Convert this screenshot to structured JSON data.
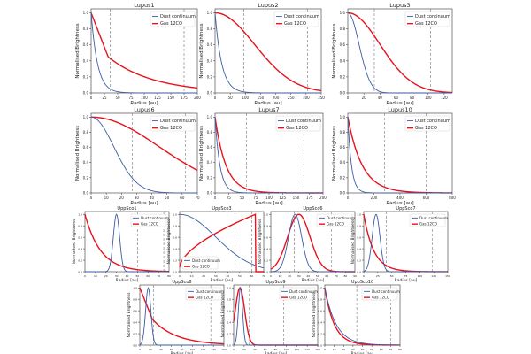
{
  "colors": {
    "dust": "#3b5ba5",
    "gas": "#e8121c",
    "axis": "#333333",
    "dashed": "#777777"
  },
  "common": {
    "xlabel": "Radius [au]",
    "ylabel": "Normalised Brightness",
    "legend": [
      "Dust continuum",
      "Gas 12CO"
    ]
  },
  "chart_data": [
    {
      "type": "line",
      "title": "Lupus1",
      "xlim": [
        0,
        200
      ],
      "xticks": [
        0,
        25,
        50,
        75,
        100,
        125,
        150,
        175,
        200
      ],
      "ylim": [
        0,
        1.05
      ],
      "yticks": [
        0,
        0.2,
        0.4,
        0.6,
        0.8,
        1.0
      ],
      "legend": "top-right",
      "vlines": [
        36,
        175
      ],
      "dust": {
        "shape": "decay",
        "scale": 12
      },
      "gas": {
        "shape": "kneeexp",
        "knee": 32,
        "scale": 85
      }
    },
    {
      "type": "line",
      "title": "Lupus2",
      "xlim": [
        0,
        350
      ],
      "xticks": [
        0,
        50,
        100,
        150,
        200,
        250,
        300,
        350
      ],
      "ylim": [
        0,
        1.05
      ],
      "yticks": [
        0,
        0.2,
        0.4,
        0.6,
        0.8,
        1.0
      ],
      "legend": "top-right",
      "vlines": [
        95,
        305
      ],
      "dust": {
        "shape": "decay",
        "scale": 22
      },
      "gas": {
        "shape": "gauss",
        "scale": 130
      }
    },
    {
      "type": "line",
      "title": "Lupus3",
      "xlim": [
        0,
        130
      ],
      "xticks": [
        0,
        20,
        40,
        60,
        80,
        100,
        120
      ],
      "ylim": [
        0,
        1.05
      ],
      "yticks": [
        0,
        0.2,
        0.4,
        0.6,
        0.8,
        1.0
      ],
      "legend": "top-right",
      "vlines": [
        33,
        103
      ],
      "dust": {
        "shape": "gauss",
        "scale": 14
      },
      "gas": {
        "shape": "gauss",
        "scale": 40
      }
    },
    {
      "type": "line",
      "title": "Lupus6",
      "xlim": [
        0,
        70
      ],
      "xticks": [
        0,
        10,
        20,
        30,
        40,
        50,
        60,
        70
      ],
      "ylim": [
        0,
        1.05
      ],
      "yticks": [
        0,
        0.2,
        0.4,
        0.6,
        0.8,
        1.0
      ],
      "legend": "top-right",
      "vlines": [
        27,
        62
      ],
      "dust": {
        "shape": "gauss",
        "scale": 15
      },
      "gas": {
        "shape": "gauss",
        "scale": 45
      }
    },
    {
      "type": "line",
      "title": "Lupus7",
      "xlim": [
        0,
        200
      ],
      "xticks": [
        0,
        25,
        50,
        75,
        100,
        125,
        150,
        175,
        200
      ],
      "ylim": [
        0,
        1.05
      ],
      "yticks": [
        0,
        0.2,
        0.4,
        0.6,
        0.8,
        1.0
      ],
      "legend": "top-right",
      "vlines": [
        58,
        165
      ],
      "dust": {
        "shape": "decay",
        "scale": 9
      },
      "gas": {
        "shape": "decay",
        "scale": 20
      }
    },
    {
      "type": "line",
      "title": "Lupus10",
      "xlim": [
        0,
        800
      ],
      "xticks": [
        0,
        200,
        400,
        600,
        800
      ],
      "ylim": [
        0,
        1.05
      ],
      "yticks": [
        0,
        0.2,
        0.4,
        0.6,
        0.8,
        1.0
      ],
      "legend": "top-right",
      "vlines": [
        280,
        600
      ],
      "dust": {
        "shape": "decay",
        "scale": 28
      },
      "gas": {
        "shape": "decay",
        "scale": 110
      }
    },
    {
      "type": "line",
      "title": "UppSco1",
      "xlim": [
        0,
        80
      ],
      "xticks": [
        0,
        10,
        20,
        30,
        40,
        50,
        60,
        70,
        80
      ],
      "ylim": [
        0,
        1.05
      ],
      "yticks": [
        0,
        0.2,
        0.4,
        0.6,
        0.8,
        1.0
      ],
      "legend": "top-right",
      "vlines": [
        50,
        75
      ],
      "dust": {
        "shape": "ring",
        "peak": 30,
        "width": 3
      },
      "gas": {
        "shape": "decay",
        "scale": 15
      }
    },
    {
      "type": "line",
      "title": "UppSco3",
      "xlim": [
        0,
        70
      ],
      "xticks": [
        0,
        10,
        20,
        30,
        40,
        50,
        60,
        70
      ],
      "ylim": [
        0,
        1.05
      ],
      "yticks": [
        0,
        0.2,
        0.4,
        0.6,
        0.8,
        1.0
      ],
      "legend": "bottom-left",
      "vlines": [
        46,
        60
      ],
      "dust": {
        "shape": "gauss",
        "scale": 30
      },
      "gas": {
        "shape": "rise",
        "end": 63
      }
    },
    {
      "type": "line",
      "title": "UppSco6",
      "xlim": [
        0,
        90
      ],
      "xticks": [
        0,
        10,
        20,
        30,
        40,
        50,
        60,
        70,
        80,
        90
      ],
      "ylim": [
        0,
        1.05
      ],
      "yticks": [
        0,
        0.2,
        0.4,
        0.6,
        0.8,
        1.0
      ],
      "legend": "top-right",
      "vlines": [
        25,
        65
      ],
      "dust": {
        "shape": "ring",
        "peak": 26,
        "width": 7
      },
      "gas": {
        "shape": "ring",
        "peak": 30,
        "width": 12
      }
    },
    {
      "type": "line",
      "title": "UppSco7",
      "xlim": [
        0,
        150
      ],
      "xticks": [
        0,
        25,
        50,
        75,
        100,
        125,
        150
      ],
      "ylim": [
        0,
        1.05
      ],
      "yticks": [
        0,
        0.2,
        0.4,
        0.6,
        0.8,
        1.0
      ],
      "legend": "top-right",
      "vlines": [
        40,
        122
      ],
      "dust": {
        "shape": "ring",
        "peak": 22,
        "width": 7
      },
      "gas": {
        "shape": "decay",
        "scale": 18
      }
    },
    {
      "type": "line",
      "title": "UppSco8",
      "xlim": [
        0,
        160
      ],
      "xticks": [
        0,
        20,
        40,
        60,
        80,
        100,
        120,
        140,
        160
      ],
      "ylim": [
        0,
        1.05
      ],
      "yticks": [
        0,
        0.2,
        0.4,
        0.6,
        0.8,
        1.0
      ],
      "legend": "top-right",
      "vlines": [
        26,
        135
      ],
      "dust": {
        "shape": "ring",
        "peak": 16,
        "width": 5
      },
      "gas": {
        "shape": "kneeexp",
        "knee": 24,
        "scale": 45
      }
    },
    {
      "type": "line",
      "title": "UppSco9",
      "xlim": [
        0,
        160
      ],
      "xticks": [
        0,
        20,
        40,
        60,
        80,
        100,
        120,
        140,
        160
      ],
      "ylim": [
        0,
        1.05
      ],
      "yticks": [
        0,
        0.2,
        0.4,
        0.6,
        0.8,
        1.0
      ],
      "legend": "top-right",
      "vlines": [
        30,
        95
      ],
      "dust": {
        "shape": "ring",
        "peak": 13,
        "width": 4
      },
      "gas": {
        "shape": "ring",
        "peak": 12,
        "width": 9
      }
    },
    {
      "type": "line",
      "title": "UppSco10",
      "xlim": [
        0,
        80
      ],
      "xticks": [
        0,
        10,
        20,
        30,
        40,
        50,
        60,
        70,
        80
      ],
      "ylim": [
        0,
        1.05
      ],
      "yticks": [
        0,
        0.2,
        0.4,
        0.6,
        0.8,
        1.0
      ],
      "legend": "top-right",
      "vlines": [
        34,
        70
      ],
      "dust": {
        "shape": "decay",
        "scale": 12
      },
      "gas": {
        "shape": "decay",
        "scale": 10
      }
    }
  ]
}
